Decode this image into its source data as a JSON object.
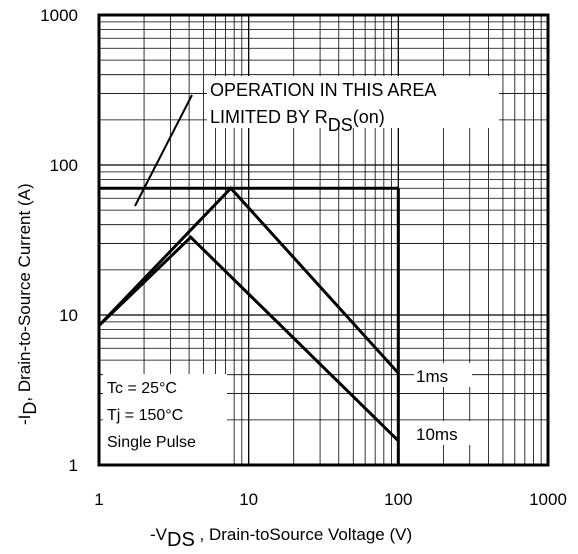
{
  "chart_data": {
    "type": "line",
    "title": "",
    "xlabel": {
      "prefix": "-V",
      "sub": "DS",
      "suffix": " , Drain-toSource Voltage (V)"
    },
    "ylabel": {
      "prefix": "-I",
      "sub": "D",
      "suffix": ",  Drain-to-Source Current (A)"
    },
    "x_scale": "log",
    "y_scale": "log",
    "xlim": [
      1,
      1000
    ],
    "ylim": [
      1,
      1000
    ],
    "x_ticks": [
      1,
      10,
      100,
      1000
    ],
    "y_ticks": [
      1,
      10,
      100,
      1000
    ],
    "x_tick_labels": [
      "1",
      "10",
      "100",
      "1000"
    ],
    "y_tick_labels": [
      "1",
      "10",
      "100",
      "1000"
    ],
    "grid": "log-minor",
    "series": [
      {
        "name": "1ms",
        "x": [
          1,
          7.6,
          100
        ],
        "y": [
          8.5,
          70,
          4.1
        ]
      },
      {
        "name": "10ms",
        "x": [
          1,
          4.1,
          100
        ],
        "y": [
          8.5,
          33,
          1.45
        ]
      }
    ],
    "boundaries": {
      "current_limit": {
        "y": 70,
        "x_range": [
          1,
          100
        ]
      },
      "voltage_limit": {
        "x": 100,
        "y_range": [
          1,
          70
        ]
      }
    },
    "annotations": {
      "rds_line1": "OPERATION IN THIS AREA",
      "rds_line2_prefix": "LIMITED BY R",
      "rds_line2_sub": "DS",
      "rds_line2_suffix": "(on)",
      "conditions": [
        "Tc = 25°C",
        "Tj = 150°C",
        "Single Pulse"
      ]
    }
  }
}
